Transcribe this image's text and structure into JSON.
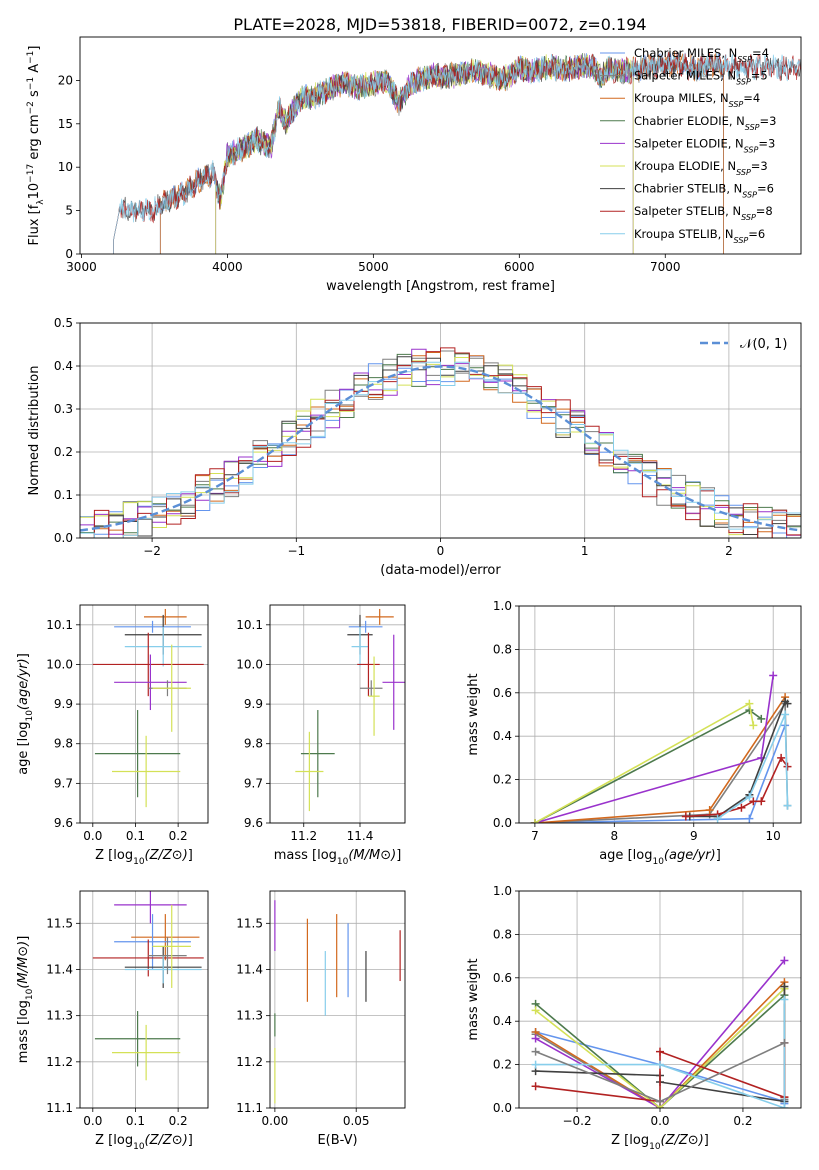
{
  "title": "PLATE=2028, MJD=53818, FIBERID=0072, z=0.194",
  "colors": {
    "chabrier_miles": "#6495ed",
    "salpeter_miles": "#7f7f7f",
    "kroupa_miles": "#d2691e",
    "chabrier_elodie": "#4d7a4d",
    "salpeter_elodie": "#9932cc",
    "kroupa_elodie": "#d4e157",
    "chabrier_stelib": "#404040",
    "salpeter_stelib": "#b22222",
    "kroupa_stelib": "#87ceeb"
  },
  "chart_data": [
    {
      "id": "spectrum",
      "type": "line",
      "xlabel": "wavelength [Angstrom, rest frame]",
      "ylabel": "Flux [f_λ10^-17 erg cm^-2 s^-1 A^-1]",
      "xlim": [
        2990,
        7930
      ],
      "ylim": [
        0,
        25
      ],
      "xticks": [
        3000,
        4000,
        5000,
        6000,
        7000
      ],
      "yticks": [
        0,
        5,
        10,
        15,
        20
      ],
      "legend": "right",
      "envelope": [
        [
          3200,
          5.0
        ],
        [
          3500,
          5.1
        ],
        [
          3600,
          6.3
        ],
        [
          3700,
          7.0
        ],
        [
          3800,
          8.4
        ],
        [
          3900,
          9.3
        ],
        [
          3950,
          6.2
        ],
        [
          4000,
          11.5
        ],
        [
          4100,
          12.0
        ],
        [
          4200,
          13.2
        ],
        [
          4300,
          12.4
        ],
        [
          4350,
          16.8
        ],
        [
          4400,
          15.2
        ],
        [
          4500,
          17.8
        ],
        [
          4600,
          18.2
        ],
        [
          4700,
          19.0
        ],
        [
          4800,
          19.8
        ],
        [
          4900,
          19.2
        ],
        [
          5000,
          19.6
        ],
        [
          5100,
          20.0
        ],
        [
          5170,
          17.3
        ],
        [
          5250,
          19.4
        ],
        [
          5300,
          20.0
        ],
        [
          5400,
          20.6
        ],
        [
          5500,
          20.4
        ],
        [
          5600,
          20.8
        ],
        [
          5700,
          21.2
        ],
        [
          5800,
          20.6
        ],
        [
          5890,
          20.1
        ],
        [
          6000,
          21.4
        ],
        [
          6100,
          21.0
        ],
        [
          6200,
          21.6
        ],
        [
          6300,
          21.2
        ],
        [
          6400,
          21.5
        ],
        [
          6500,
          21.8
        ],
        [
          6560,
          20.2
        ],
        [
          6600,
          21.3
        ],
        [
          6700,
          21.0
        ],
        [
          6800,
          21.2
        ],
        [
          6900,
          21.6
        ],
        [
          7000,
          21.7
        ],
        [
          7100,
          21.9
        ],
        [
          7200,
          21.3
        ],
        [
          7300,
          21.8
        ],
        [
          7400,
          21.7
        ],
        [
          7500,
          21.5
        ],
        [
          7600,
          21.5
        ],
        [
          7700,
          21.6
        ],
        [
          7800,
          21.4
        ],
        [
          7930,
          21.5
        ]
      ],
      "models": [
        {
          "name": "Chabrier MILES",
          "n_ssp": "4",
          "color_key": "chabrier_miles",
          "start": 3540,
          "end": 7400
        },
        {
          "name": "Salpeter MILES",
          "n_ssp": "5",
          "color_key": "salpeter_miles",
          "start": 3540,
          "end": 7400
        },
        {
          "name": "Kroupa MILES",
          "n_ssp": "4",
          "color_key": "kroupa_miles",
          "start": 3540,
          "end": 7400
        },
        {
          "name": "Chabrier ELODIE",
          "n_ssp": "3",
          "color_key": "chabrier_elodie",
          "start": 3920,
          "end": 6780
        },
        {
          "name": "Salpeter ELODIE",
          "n_ssp": "3",
          "color_key": "salpeter_elodie",
          "start": 3920,
          "end": 6780
        },
        {
          "name": "Kroupa ELODIE",
          "n_ssp": "3",
          "color_key": "kroupa_elodie",
          "start": 3920,
          "end": 6780
        },
        {
          "name": "Chabrier STELIB",
          "n_ssp": "6",
          "color_key": "chabrier_stelib",
          "start": 3220,
          "end": 7930
        },
        {
          "name": "Salpeter STELIB",
          "n_ssp": "8",
          "color_key": "salpeter_stelib",
          "start": 3220,
          "end": 7930
        },
        {
          "name": "Kroupa STELIB",
          "n_ssp": "6",
          "color_key": "kroupa_stelib",
          "start": 3220,
          "end": 7930
        }
      ]
    },
    {
      "id": "residuals",
      "type": "line",
      "xlabel": "(data-model)/error",
      "ylabel": "Normed distribution",
      "xlim": [
        -2.5,
        2.5
      ],
      "ylim": [
        0,
        0.5
      ],
      "xticks": [
        -2,
        -1,
        0,
        1,
        2
      ],
      "yticks": [
        0.0,
        0.1,
        0.2,
        0.3,
        0.4,
        0.5
      ],
      "grid": true,
      "legend": "top-right",
      "gaussian_label": "𝒩(0, 1)",
      "gaussian_color": "#5b8fd6",
      "bin_width": 0.1
    },
    {
      "id": "age_vs_Z",
      "type": "scatter",
      "xlabel": "Z [log10(Z/Z⊙)]",
      "ylabel": "age [log10(age/yr)]",
      "xlim": [
        -0.03,
        0.27
      ],
      "ylim": [
        9.6,
        10.15
      ],
      "xticks": [
        0.0,
        0.1,
        0.2
      ],
      "yticks": [
        9.6,
        9.7,
        9.8,
        9.9,
        10.0,
        10.1
      ],
      "grid": true,
      "points": [
        {
          "color_key": "kroupa_miles",
          "x": 0.17,
          "xerr": 0.05,
          "y": 10.12,
          "yerr": 0.02
        },
        {
          "color_key": "chabrier_miles",
          "x": 0.14,
          "xerr": 0.09,
          "y": 10.095,
          "yerr": 0.015
        },
        {
          "color_key": "chabrier_stelib",
          "x": 0.165,
          "xerr": 0.09,
          "y": 10.075,
          "yerr": 0.05
        },
        {
          "color_key": "kroupa_stelib",
          "x": 0.165,
          "xerr": 0.09,
          "y": 10.045,
          "yerr": 0.05
        },
        {
          "color_key": "salpeter_stelib",
          "x": 0.13,
          "xerr": 0.13,
          "y": 10.0,
          "yerr": 0.08
        },
        {
          "color_key": "salpeter_elodie",
          "x": 0.135,
          "xerr": 0.085,
          "y": 9.955,
          "yerr": 0.07
        },
        {
          "color_key": "salpeter_miles",
          "x": 0.175,
          "xerr": 0.045,
          "y": 9.94,
          "yerr": 0.02
        },
        {
          "color_key": "kroupa_elodie",
          "x": 0.185,
          "xerr": 0.045,
          "y": 9.94,
          "yerr": 0.11
        },
        {
          "color_key": "chabrier_elodie",
          "x": 0.105,
          "xerr": 0.1,
          "y": 9.775,
          "yerr": 0.11
        },
        {
          "color_key": "kroupa_elodie",
          "x": 0.125,
          "xerr": 0.08,
          "y": 9.73,
          "yerr": 0.09
        }
      ]
    },
    {
      "id": "age_vs_mass",
      "type": "scatter",
      "xlabel": "mass [log10(M/M⊙)]",
      "ylabel": "",
      "xlim": [
        11.08,
        11.56
      ],
      "ylim": [
        9.6,
        10.15
      ],
      "xticks": [
        11.2,
        11.4
      ],
      "yticks": [
        9.6,
        9.7,
        9.8,
        9.9,
        10.0,
        10.1
      ],
      "grid": true,
      "points": [
        {
          "color_key": "kroupa_miles",
          "x": 11.47,
          "xerr": 0.05,
          "y": 10.12,
          "yerr": 0.02
        },
        {
          "color_key": "chabrier_miles",
          "x": 11.42,
          "xerr": 0.06,
          "y": 10.095,
          "yerr": 0.015
        },
        {
          "color_key": "chabrier_stelib",
          "x": 11.4,
          "xerr": 0.045,
          "y": 10.075,
          "yerr": 0.05
        },
        {
          "color_key": "kroupa_stelib",
          "x": 11.4,
          "xerr": 0.03,
          "y": 10.045,
          "yerr": 0.05
        },
        {
          "color_key": "salpeter_stelib",
          "x": 11.43,
          "xerr": 0.04,
          "y": 10.0,
          "yerr": 0.08
        },
        {
          "color_key": "salpeter_elodie",
          "x": 11.52,
          "xerr": 0.04,
          "y": 9.955,
          "yerr": 0.12
        },
        {
          "color_key": "salpeter_miles",
          "x": 11.44,
          "xerr": 0.04,
          "y": 9.94,
          "yerr": 0.02
        },
        {
          "color_key": "kroupa_elodie",
          "x": 11.45,
          "xerr": 0.02,
          "y": 9.92,
          "yerr": 0.1
        },
        {
          "color_key": "chabrier_elodie",
          "x": 11.25,
          "xerr": 0.06,
          "y": 9.775,
          "yerr": 0.11
        },
        {
          "color_key": "kroupa_elodie",
          "x": 11.22,
          "xerr": 0.05,
          "y": 9.73,
          "yerr": 0.1
        }
      ]
    },
    {
      "id": "mass_weight_vs_age",
      "type": "line",
      "xlabel": "age [log10(age/yr)]",
      "ylabel": "mass weight",
      "xlim": [
        6.8,
        10.35
      ],
      "ylim": [
        0,
        1
      ],
      "xticks": [
        7,
        8,
        9,
        10
      ],
      "yticks": [
        0.0,
        0.2,
        0.4,
        0.6,
        0.8,
        1.0
      ],
      "grid": true,
      "series": [
        {
          "color_key": "chabrier_miles",
          "x": [
            7.0,
            9.7,
            10.15
          ],
          "y": [
            0.0,
            0.02,
            0.45
          ]
        },
        {
          "color_key": "salpeter_miles",
          "x": [
            7.0,
            9.2,
            10.15,
            10.18
          ],
          "y": [
            0.0,
            0.04,
            0.55,
            0.08
          ]
        },
        {
          "color_key": "kroupa_miles",
          "x": [
            7.0,
            9.2,
            10.15
          ],
          "y": [
            0.0,
            0.06,
            0.58
          ]
        },
        {
          "color_key": "chabrier_elodie",
          "x": [
            7.0,
            9.7,
            9.85
          ],
          "y": [
            0.0,
            0.52,
            0.48
          ]
        },
        {
          "color_key": "salpeter_elodie",
          "x": [
            7.0,
            9.85,
            10.0
          ],
          "y": [
            0.0,
            0.3,
            0.68
          ]
        },
        {
          "color_key": "kroupa_elodie",
          "x": [
            7.0,
            9.7,
            9.75
          ],
          "y": [
            0.0,
            0.55,
            0.45
          ]
        },
        {
          "color_key": "chabrier_stelib",
          "x": [
            8.95,
            9.3,
            9.7,
            10.15,
            10.18
          ],
          "y": [
            0.03,
            0.03,
            0.13,
            0.56,
            0.55
          ]
        },
        {
          "color_key": "salpeter_stelib",
          "x": [
            8.9,
            9.3,
            9.6,
            9.75,
            9.85,
            10.1,
            10.18
          ],
          "y": [
            0.03,
            0.04,
            0.07,
            0.1,
            0.1,
            0.3,
            0.26
          ]
        },
        {
          "color_key": "kroupa_stelib",
          "x": [
            9.3,
            9.7,
            10.15,
            10.18
          ],
          "y": [
            0.02,
            0.12,
            0.5,
            0.08
          ]
        }
      ]
    },
    {
      "id": "mass_vs_Z",
      "type": "scatter",
      "xlabel": "Z [log10(Z/Z⊙)]",
      "ylabel": "mass [log10(M/M⊙)]",
      "xlim": [
        -0.03,
        0.27
      ],
      "ylim": [
        11.1,
        11.57
      ],
      "xticks": [
        0.0,
        0.1,
        0.2
      ],
      "yticks": [
        11.1,
        11.2,
        11.3,
        11.4,
        11.5
      ],
      "grid": true,
      "points": [
        {
          "color_key": "salpeter_elodie",
          "x": 0.135,
          "xerr": 0.085,
          "y": 11.54,
          "yerr": 0.04
        },
        {
          "color_key": "kroupa_miles",
          "x": 0.17,
          "xerr": 0.08,
          "y": 11.47,
          "yerr": 0.05
        },
        {
          "color_key": "chabrier_miles",
          "x": 0.14,
          "xerr": 0.09,
          "y": 11.46,
          "yerr": 0.06
        },
        {
          "color_key": "salpeter_stelib",
          "x": 0.13,
          "xerr": 0.13,
          "y": 11.425,
          "yerr": 0.04
        },
        {
          "color_key": "chabrier_stelib",
          "x": 0.165,
          "xerr": 0.09,
          "y": 11.405,
          "yerr": 0.045
        },
        {
          "color_key": "kroupa_stelib",
          "x": 0.165,
          "xerr": 0.09,
          "y": 11.4,
          "yerr": 0.03
        },
        {
          "color_key": "salpeter_miles",
          "x": 0.175,
          "xerr": 0.045,
          "y": 11.43,
          "yerr": 0.04
        },
        {
          "color_key": "kroupa_elodie",
          "x": 0.185,
          "xerr": 0.045,
          "y": 11.45,
          "yerr": 0.09
        },
        {
          "color_key": "chabrier_elodie",
          "x": 0.105,
          "xerr": 0.1,
          "y": 11.25,
          "yerr": 0.06
        },
        {
          "color_key": "kroupa_elodie",
          "x": 0.125,
          "xerr": 0.08,
          "y": 11.22,
          "yerr": 0.06
        }
      ]
    },
    {
      "id": "mass_vs_ebv",
      "type": "scatter",
      "xlabel": "E(B-V)",
      "ylabel": "",
      "xlim": [
        -0.003,
        0.08
      ],
      "ylim": [
        11.1,
        11.57
      ],
      "xticks": [
        0.0,
        0.05
      ],
      "yticks": [
        11.1,
        11.2,
        11.3,
        11.4,
        11.5
      ],
      "grid": true,
      "points": [
        {
          "color_key": "salpeter_elodie",
          "x": 0.0,
          "xerr": 0,
          "y": 11.495,
          "yerr": 0.055
        },
        {
          "color_key": "chabrier_elodie",
          "x": 0.0,
          "xerr": 0,
          "y": 11.28,
          "yerr": 0.025
        },
        {
          "color_key": "kroupa_elodie",
          "x": 0.0,
          "xerr": 0,
          "y": 11.17,
          "yerr": 0.06
        },
        {
          "color_key": "kroupa_miles",
          "x": 0.02,
          "xerr": 0,
          "y": 11.42,
          "yerr": 0.09
        },
        {
          "color_key": "kroupa_stelib",
          "x": 0.031,
          "xerr": 0,
          "y": 11.37,
          "yerr": 0.07
        },
        {
          "color_key": "kroupa_miles",
          "x": 0.038,
          "xerr": 0,
          "y": 11.43,
          "yerr": 0.09
        },
        {
          "color_key": "chabrier_miles",
          "x": 0.045,
          "xerr": 0,
          "y": 11.42,
          "yerr": 0.08
        },
        {
          "color_key": "chabrier_stelib",
          "x": 0.056,
          "xerr": 0,
          "y": 11.385,
          "yerr": 0.055
        },
        {
          "color_key": "salpeter_stelib",
          "x": 0.077,
          "xerr": 0,
          "y": 11.43,
          "yerr": 0.055
        }
      ]
    },
    {
      "id": "mass_weight_vs_Z",
      "type": "line",
      "xlabel": "Z [log10(Z/Z⊙)]",
      "ylabel": "mass weight",
      "xlim": [
        -0.34,
        0.34
      ],
      "ylim": [
        0,
        1
      ],
      "xticks": [
        -0.2,
        0.0,
        0.2
      ],
      "yticks": [
        0.0,
        0.2,
        0.4,
        0.6,
        0.8,
        1.0
      ],
      "grid": true,
      "series": [
        {
          "color_key": "chabrier_miles",
          "x": [
            -0.3,
            0.0,
            0.3,
            0.3
          ],
          "y": [
            0.35,
            0.2,
            0.03,
            0.02
          ]
        },
        {
          "color_key": "salpeter_miles",
          "x": [
            -0.3,
            0.0,
            0.3,
            0.3
          ],
          "y": [
            0.34,
            0.0,
            0.55,
            0.04
          ]
        },
        {
          "color_key": "kroupa_miles",
          "x": [
            -0.3,
            0.0,
            0.3,
            0.3
          ],
          "y": [
            0.35,
            0.0,
            0.58,
            0.05
          ]
        },
        {
          "color_key": "chabrier_elodie",
          "x": [
            -0.3,
            0.0,
            0.3
          ],
          "y": [
            0.48,
            0.0,
            0.52
          ]
        },
        {
          "color_key": "salpeter_elodie",
          "x": [
            -0.3,
            0.0,
            0.3
          ],
          "y": [
            0.32,
            0.0,
            0.68
          ]
        },
        {
          "color_key": "kroupa_elodie",
          "x": [
            -0.3,
            0.0,
            0.3
          ],
          "y": [
            0.45,
            0.0,
            0.55
          ]
        },
        {
          "color_key": "chabrier_stelib",
          "x": [
            -0.3,
            0.0,
            0.0,
            0.3,
            0.3
          ],
          "y": [
            0.17,
            0.15,
            0.12,
            0.03,
            0.56
          ]
        },
        {
          "color_key": "salpeter_stelib",
          "x": [
            -0.3,
            0.0,
            0.0,
            0.3,
            0.3
          ],
          "y": [
            0.1,
            0.03,
            0.26,
            0.05,
            0.3
          ]
        },
        {
          "color_key": "kroupa_stelib",
          "x": [
            -0.3,
            0.0,
            0.3,
            0.3
          ],
          "y": [
            0.2,
            0.2,
            0.0,
            0.5
          ]
        },
        {
          "color_key": "salpeter_miles",
          "x": [
            -0.3,
            0.0,
            0.3
          ],
          "y": [
            0.26,
            0.03,
            0.3
          ]
        }
      ]
    }
  ]
}
